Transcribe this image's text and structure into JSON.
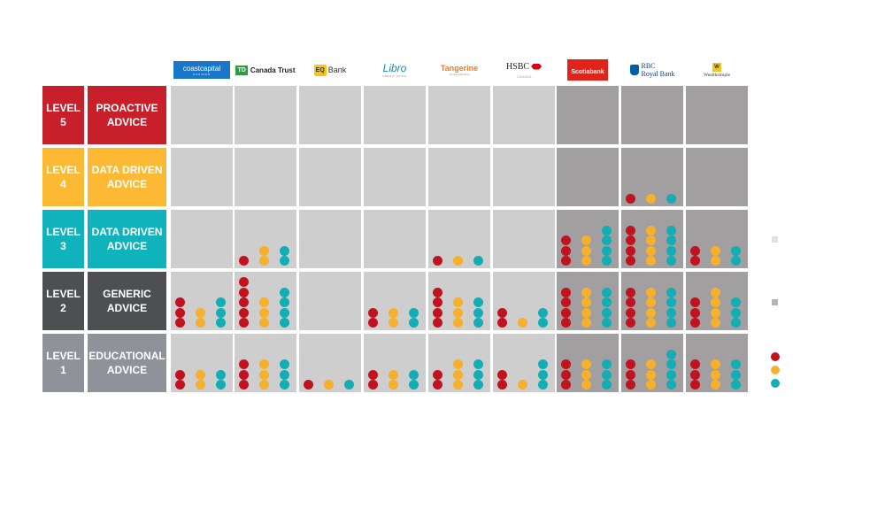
{
  "colors": {
    "level5": "#c8202a",
    "level4": "#fbb934",
    "level3": "#10b2bb",
    "level2": "#4d4f53",
    "level1": "#8f9299",
    "cell_light": "#cecece",
    "cell_dark": "#a19f9f",
    "dot_red": "#c1121f",
    "dot_amber": "#f6b02b",
    "dot_teal": "#12adb5",
    "legend_square_light": "#e2e2e2",
    "legend_square_dark": "#b4b4b4"
  },
  "banks": [
    {
      "label": "coastcapital",
      "sub": "SAVINGS",
      "icon": "coast-capital-logo",
      "group": "light"
    },
    {
      "label": "Canada Trust",
      "mark": "TD",
      "icon": "td-canada-trust-logo",
      "group": "light"
    },
    {
      "label": "Bank",
      "mark": "EQ",
      "icon": "eq-bank-logo",
      "group": "light"
    },
    {
      "label": "Libro",
      "sub": "CREDIT UNION",
      "icon": "libro-logo",
      "group": "light"
    },
    {
      "label": "Tangerine",
      "sub": "Forward Banking",
      "icon": "tangerine-logo",
      "group": "light"
    },
    {
      "label": "HSBC",
      "sub": "CANADA",
      "icon": "hsbc-logo",
      "group": "light"
    },
    {
      "label": "Scotiabank",
      "icon": "scotiabank-logo",
      "group": "dark"
    },
    {
      "label": "RBC",
      "label2": "Royal Bank",
      "icon": "rbc-royal-bank-logo",
      "group": "dark"
    },
    {
      "label": "Wealthsimple",
      "mark": "W",
      "icon": "wealthsimple-logo",
      "group": "dark"
    }
  ],
  "levels": [
    {
      "num_line1": "LEVEL",
      "num_line2": "5",
      "name_line1": "PROACTIVE",
      "name_line2": "ADVICE",
      "color_key": "level5"
    },
    {
      "num_line1": "LEVEL",
      "num_line2": "4",
      "name_line1": "DATA DRIVEN",
      "name_line2": "ADVICE",
      "color_key": "level4"
    },
    {
      "num_line1": "LEVEL",
      "num_line2": "3",
      "name_line1": "DATA DRIVEN",
      "name_line2": "ADVICE",
      "color_key": "level3"
    },
    {
      "num_line1": "LEVEL",
      "num_line2": "2",
      "name_line1": "GENERIC",
      "name_line2": "ADVICE",
      "color_key": "level2"
    },
    {
      "num_line1": "LEVEL",
      "num_line2": "1",
      "name_line1": "EDUCATIONAL",
      "name_line2": "ADVICE",
      "color_key": "level1"
    }
  ],
  "dot_counts": [
    [
      [
        0,
        0,
        0
      ],
      [
        0,
        0,
        0
      ],
      [
        0,
        0,
        0
      ],
      [
        0,
        0,
        0
      ],
      [
        0,
        0,
        0
      ],
      [
        0,
        0,
        0
      ],
      [
        0,
        0,
        0
      ],
      [
        0,
        0,
        0
      ],
      [
        0,
        0,
        0
      ]
    ],
    [
      [
        0,
        0,
        0
      ],
      [
        0,
        0,
        0
      ],
      [
        0,
        0,
        0
      ],
      [
        0,
        0,
        0
      ],
      [
        0,
        0,
        0
      ],
      [
        0,
        0,
        0
      ],
      [
        0,
        0,
        0
      ],
      [
        1,
        1,
        1
      ],
      [
        0,
        0,
        0
      ]
    ],
    [
      [
        0,
        0,
        0
      ],
      [
        1,
        2,
        2
      ],
      [
        0,
        0,
        0
      ],
      [
        0,
        0,
        0
      ],
      [
        1,
        1,
        1
      ],
      [
        0,
        0,
        0
      ],
      [
        3,
        3,
        4
      ],
      [
        4,
        4,
        4
      ],
      [
        2,
        2,
        2
      ]
    ],
    [
      [
        3,
        2,
        3
      ],
      [
        5,
        3,
        4
      ],
      [
        0,
        0,
        0
      ],
      [
        2,
        2,
        2
      ],
      [
        4,
        3,
        3
      ],
      [
        2,
        1,
        2
      ],
      [
        4,
        4,
        4
      ],
      [
        4,
        4,
        4
      ],
      [
        3,
        4,
        3
      ]
    ],
    [
      [
        2,
        2,
        2
      ],
      [
        3,
        3,
        3
      ],
      [
        1,
        1,
        1
      ],
      [
        2,
        2,
        2
      ],
      [
        2,
        3,
        3
      ],
      [
        2,
        1,
        3
      ],
      [
        3,
        3,
        3
      ],
      [
        3,
        3,
        4
      ],
      [
        3,
        3,
        3
      ]
    ]
  ],
  "legend": {
    "squares": [
      "light",
      "dark"
    ],
    "dots": [
      "red",
      "amber",
      "teal"
    ]
  }
}
